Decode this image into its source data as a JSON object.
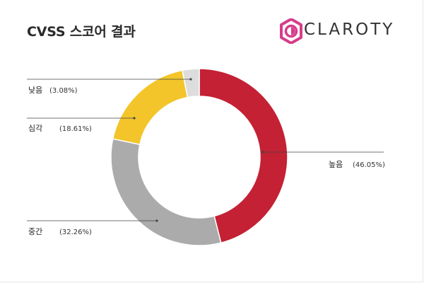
{
  "header": {
    "title": "CVSS 스코어 결과"
  },
  "brand": {
    "logo_text": "CLAROTY",
    "logo_icon": "claroty-logo-icon",
    "logo_color": "#d63c8c"
  },
  "chart_data": {
    "type": "pie",
    "title": "CVSS 스코어 결과",
    "donut": true,
    "slices": [
      {
        "name": "높음",
        "value": 46.05,
        "label": "(46.05%)",
        "color": "#c42134"
      },
      {
        "name": "중간",
        "value": 32.26,
        "label": "(32.26%)",
        "color": "#ababab"
      },
      {
        "name": "심각",
        "value": 18.61,
        "label": "(18.61%)",
        "color": "#f3c52b"
      },
      {
        "name": "낮음",
        "value": 3.08,
        "label": "(3.08%)",
        "color": "#dddddd"
      }
    ]
  }
}
